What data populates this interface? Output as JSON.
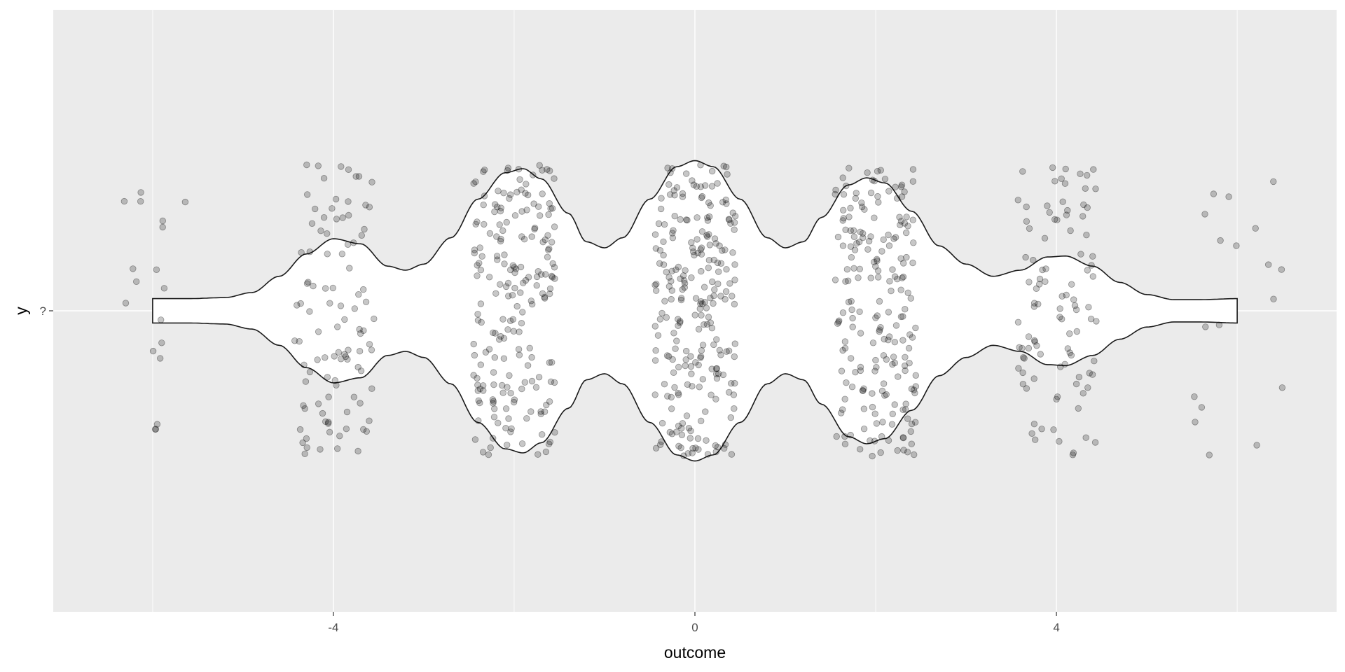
{
  "chart_data": {
    "type": "violin",
    "title": "",
    "xlabel": "outcome",
    "ylabel": "y",
    "xlim": [
      -7.1,
      7.1
    ],
    "x_ticks": [
      -4,
      0,
      4
    ],
    "x_tick_labels": [
      "-4",
      "0",
      "4"
    ],
    "y_categories": [
      "?"
    ],
    "grid": true,
    "colors": {
      "panel": "#ebebeb",
      "grid": "#ffffff",
      "violin_fill": "#ffffff",
      "violin_line": "#1a1a1a",
      "points": "#000000"
    },
    "violin": {
      "x_range": [
        -6,
        6
      ],
      "max_half_width": 0.74,
      "density": [
        [
          -6.0,
          0.06
        ],
        [
          -5.6,
          0.06
        ],
        [
          -5.2,
          0.065
        ],
        [
          -4.9,
          0.09
        ],
        [
          -4.6,
          0.17
        ],
        [
          -4.3,
          0.28
        ],
        [
          -4.0,
          0.355
        ],
        [
          -3.7,
          0.33
        ],
        [
          -3.4,
          0.22
        ],
        [
          -3.2,
          0.2
        ],
        [
          -3.0,
          0.23
        ],
        [
          -2.7,
          0.36
        ],
        [
          -2.4,
          0.55
        ],
        [
          -2.1,
          0.68
        ],
        [
          -1.9,
          0.7
        ],
        [
          -1.7,
          0.65
        ],
        [
          -1.4,
          0.48
        ],
        [
          -1.2,
          0.34
        ],
        [
          -1.0,
          0.31
        ],
        [
          -0.8,
          0.36
        ],
        [
          -0.5,
          0.55
        ],
        [
          -0.2,
          0.71
        ],
        [
          0.0,
          0.74
        ],
        [
          0.2,
          0.71
        ],
        [
          0.5,
          0.55
        ],
        [
          0.8,
          0.36
        ],
        [
          1.0,
          0.31
        ],
        [
          1.2,
          0.34
        ],
        [
          1.4,
          0.46
        ],
        [
          1.7,
          0.62
        ],
        [
          1.9,
          0.655
        ],
        [
          2.1,
          0.63
        ],
        [
          2.4,
          0.49
        ],
        [
          2.7,
          0.32
        ],
        [
          3.0,
          0.23
        ],
        [
          3.3,
          0.17
        ],
        [
          3.6,
          0.2
        ],
        [
          3.9,
          0.265
        ],
        [
          4.1,
          0.27
        ],
        [
          4.4,
          0.22
        ],
        [
          4.7,
          0.14
        ],
        [
          5.0,
          0.08
        ],
        [
          5.3,
          0.055
        ],
        [
          5.6,
          0.055
        ],
        [
          6.0,
          0.06
        ]
      ]
    },
    "points": {
      "opacity": 0.22,
      "jitter_height": 0.8,
      "groups": [
        {
          "x": -6,
          "count": 18,
          "spread": 0.42
        },
        {
          "x": -4,
          "count": 100,
          "spread": 0.45
        },
        {
          "x": -2,
          "count": 200,
          "spread": 0.45
        },
        {
          "x": 0,
          "count": 240,
          "spread": 0.45
        },
        {
          "x": 2,
          "count": 200,
          "spread": 0.45
        },
        {
          "x": 4,
          "count": 100,
          "spread": 0.45
        },
        {
          "x": 6,
          "count": 18,
          "spread": 0.5
        }
      ]
    }
  }
}
